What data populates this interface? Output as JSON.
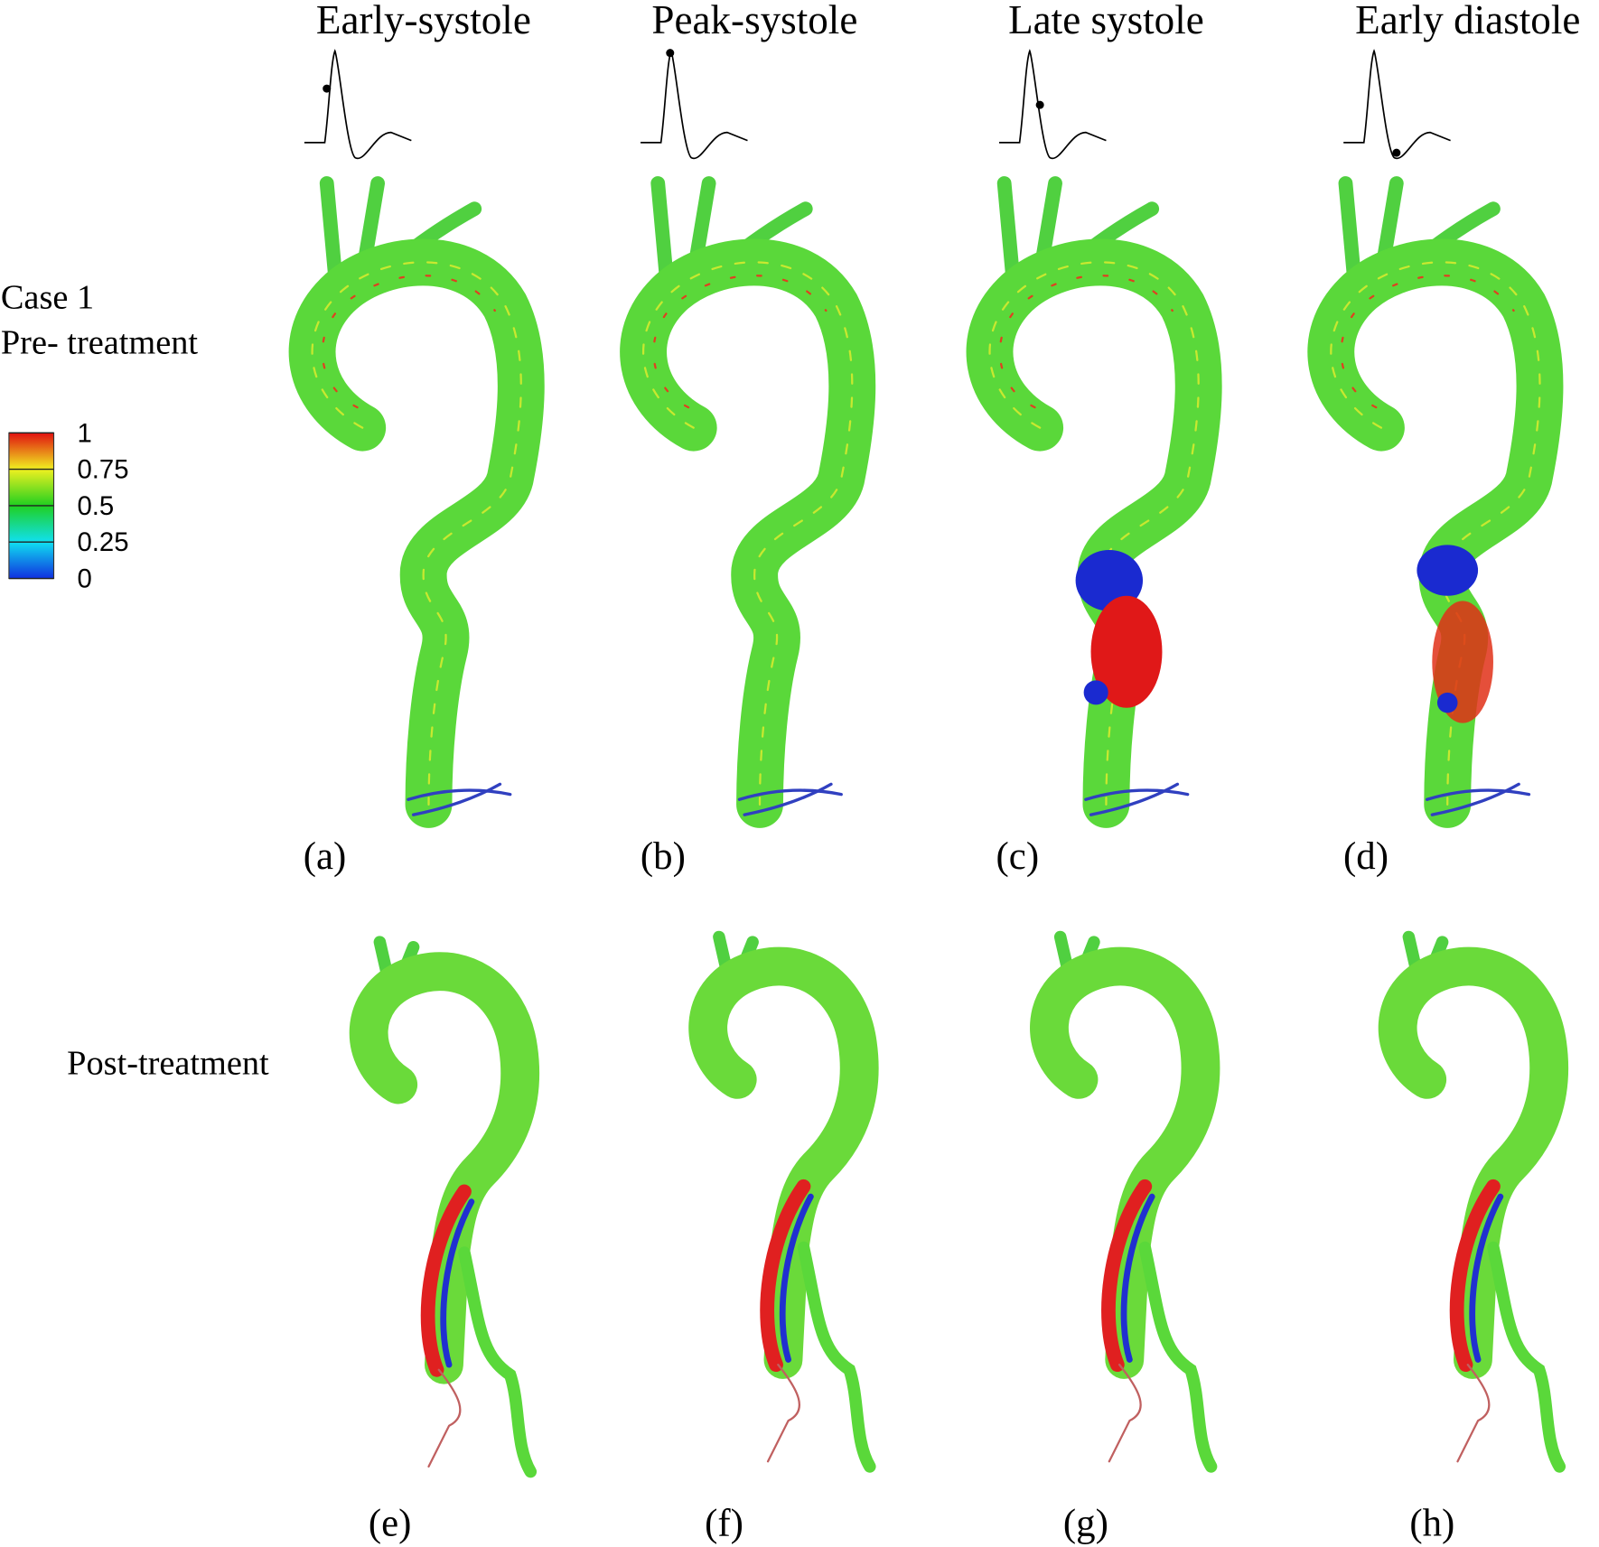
{
  "column_titles": [
    "Early-systole",
    "Peak-systole",
    "Late systole",
    "Early diastole"
  ],
  "row_labels": {
    "pre": [
      "Case 1",
      "Pre- treatment"
    ],
    "post": "Post-treatment"
  },
  "panel_labels": [
    "(a)",
    "(b)",
    "(c)",
    "(d)",
    "(e)",
    "(f)",
    "(g)",
    "(h)"
  ],
  "colorbar": {
    "ticks": [
      1,
      0.75,
      0.5,
      0.25,
      0
    ]
  }
}
